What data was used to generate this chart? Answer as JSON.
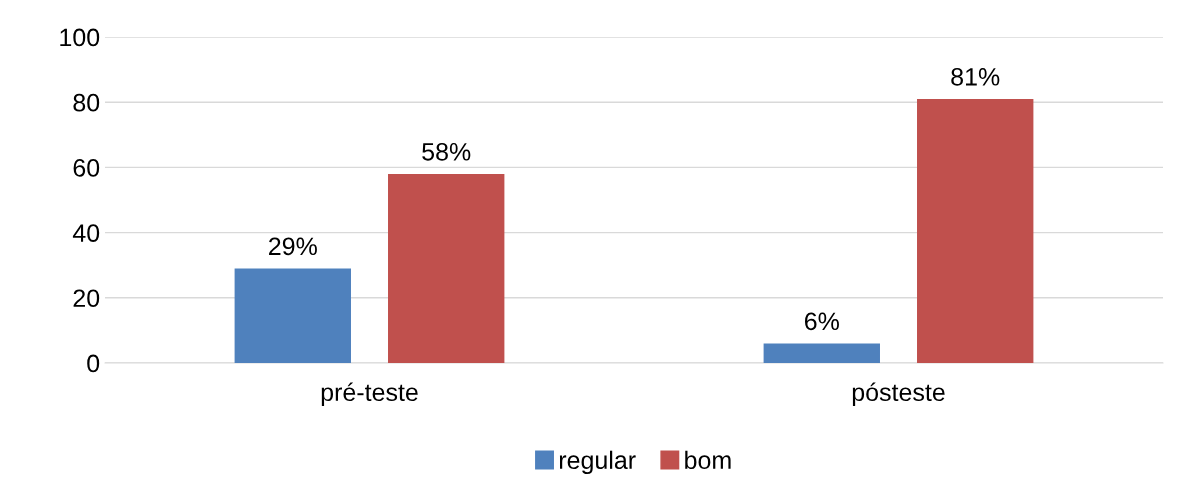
{
  "chart_data": {
    "type": "bar",
    "categories": [
      "pré-teste",
      "pósteste"
    ],
    "series": [
      {
        "name": "regular",
        "color": "#4f81bd",
        "values": [
          29,
          6
        ],
        "value_labels": [
          "29%",
          "6%"
        ]
      },
      {
        "name": "bom",
        "color": "#c0504d",
        "values": [
          58,
          81
        ],
        "value_labels": [
          "58%",
          "81%"
        ]
      }
    ],
    "ylim": [
      0,
      100
    ],
    "yticks": [
      0,
      20,
      40,
      60,
      80,
      100
    ],
    "grid": "y",
    "legend": "bottom"
  }
}
